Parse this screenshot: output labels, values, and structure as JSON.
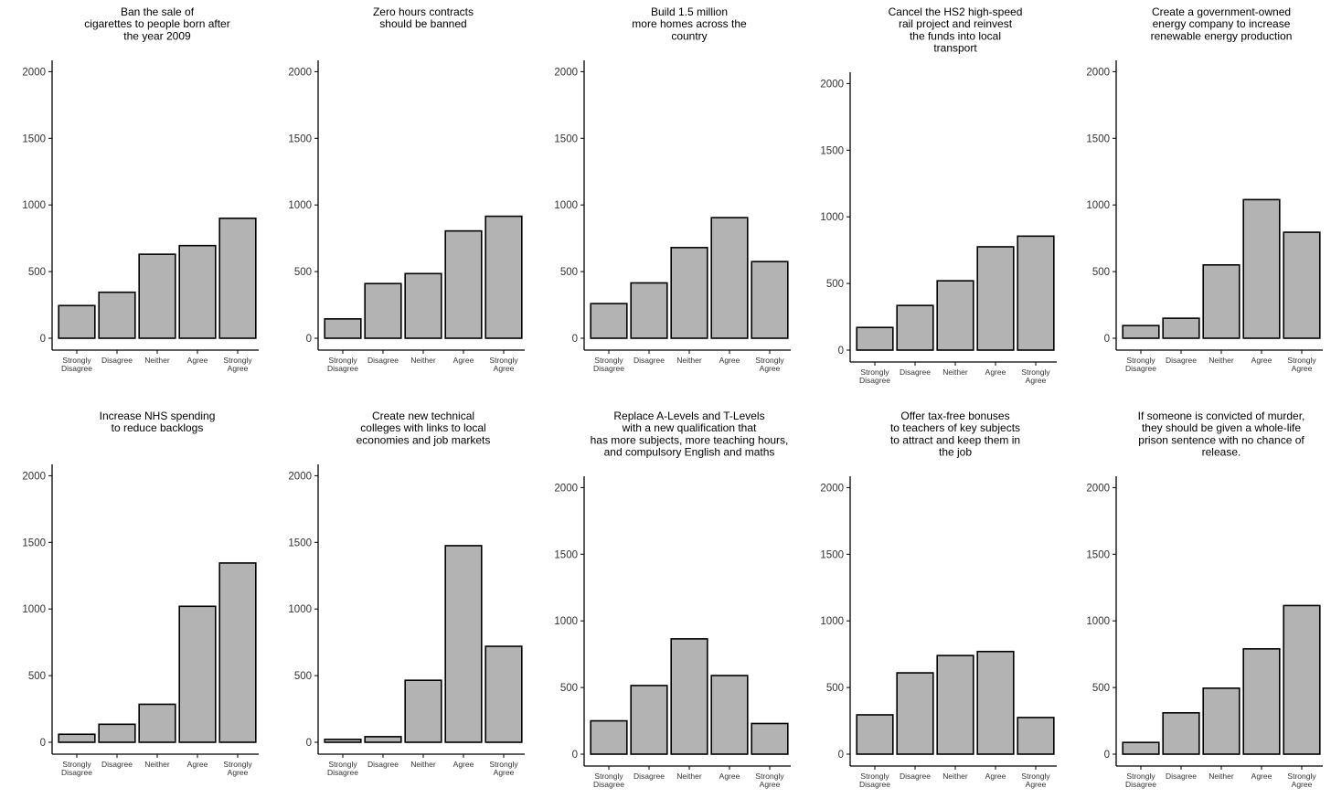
{
  "colors": {
    "bar_fill": "#b3b3b3",
    "bar_stroke": "#000000",
    "axis": "#000000",
    "background": "#ffffff"
  },
  "chart_data": [
    {
      "type": "bar",
      "title": "Ban the sale of cigarettes to people born after the year 2009",
      "title_lines": [
        "Ban the sale of",
        "cigarettes to people born after",
        "the year 2009"
      ],
      "categories": [
        "Strongly Disagree",
        "Disagree",
        "Neither",
        "Agree",
        "Strongly Agree"
      ],
      "category_lines": [
        [
          "Strongly",
          "Disagree"
        ],
        [
          "Disagree"
        ],
        [
          "Neither"
        ],
        [
          "Agree"
        ],
        [
          "Strongly",
          "Agree"
        ]
      ],
      "values": [
        245,
        345,
        630,
        695,
        900
      ],
      "yticks": [
        0,
        500,
        1000,
        1500,
        2000
      ],
      "ylim": [
        0,
        2000
      ],
      "xlabel": "",
      "ylabel": "",
      "grid": false
    },
    {
      "type": "bar",
      "title": "Zero hours contracts should be banned",
      "title_lines": [
        "Zero hours contracts",
        "should be banned"
      ],
      "categories": [
        "Strongly Disagree",
        "Disagree",
        "Neither",
        "Agree",
        "Strongly Agree"
      ],
      "category_lines": [
        [
          "Strongly",
          "Disagree"
        ],
        [
          "Disagree"
        ],
        [
          "Neither"
        ],
        [
          "Agree"
        ],
        [
          "Strongly",
          "Agree"
        ]
      ],
      "values": [
        145,
        410,
        485,
        805,
        915
      ],
      "yticks": [
        0,
        500,
        1000,
        1500,
        2000
      ],
      "ylim": [
        0,
        2000
      ],
      "xlabel": "",
      "ylabel": "",
      "grid": false
    },
    {
      "type": "bar",
      "title": "Build 1.5 million more homes across the country",
      "title_lines": [
        "Build 1.5 million",
        "more homes across the",
        "country"
      ],
      "categories": [
        "Strongly Disagree",
        "Disagree",
        "Neither",
        "Agree",
        "Strongly Agree"
      ],
      "category_lines": [
        [
          "Strongly",
          "Disagree"
        ],
        [
          "Disagree"
        ],
        [
          "Neither"
        ],
        [
          "Agree"
        ],
        [
          "Strongly",
          "Agree"
        ]
      ],
      "values": [
        260,
        415,
        680,
        905,
        575
      ],
      "yticks": [
        0,
        500,
        1000,
        1500,
        2000
      ],
      "ylim": [
        0,
        2000
      ],
      "xlabel": "",
      "ylabel": "",
      "grid": false
    },
    {
      "type": "bar",
      "title": "Cancel the HS2 high-speed rail project and reinvest the funds into local transport",
      "title_lines": [
        "Cancel the HS2 high-speed",
        "rail project and reinvest",
        "the funds into local",
        "transport"
      ],
      "categories": [
        "Strongly Disagree",
        "Disagree",
        "Neither",
        "Agree",
        "Strongly Agree"
      ],
      "category_lines": [
        [
          "Strongly",
          "Disagree"
        ],
        [
          "Disagree"
        ],
        [
          "Neither"
        ],
        [
          "Agree"
        ],
        [
          "Strongly",
          "Agree"
        ]
      ],
      "values": [
        170,
        335,
        520,
        775,
        855
      ],
      "yticks": [
        0,
        500,
        1000,
        1500,
        2000
      ],
      "ylim": [
        0,
        2000
      ],
      "xlabel": "",
      "ylabel": "",
      "grid": false
    },
    {
      "type": "bar",
      "title": "Create a government-owned energy company to increase renewable energy production",
      "title_lines": [
        "Create a government-owned",
        "energy company to increase",
        "renewable energy production"
      ],
      "categories": [
        "Strongly Disagree",
        "Disagree",
        "Neither",
        "Agree",
        "Strongly Agree"
      ],
      "category_lines": [
        [
          "Strongly",
          "Disagree"
        ],
        [
          "Disagree"
        ],
        [
          "Neither"
        ],
        [
          "Agree"
        ],
        [
          "Strongly",
          "Agree"
        ]
      ],
      "values": [
        95,
        150,
        550,
        1040,
        795
      ],
      "yticks": [
        0,
        500,
        1000,
        1500,
        2000
      ],
      "ylim": [
        0,
        2000
      ],
      "xlabel": "",
      "ylabel": "",
      "grid": false
    },
    {
      "type": "bar",
      "title": "Increase NHS spending to reduce backlogs",
      "title_lines": [
        "Increase NHS spending",
        "to reduce backlogs"
      ],
      "categories": [
        "Strongly Disagree",
        "Disagree",
        "Neither",
        "Agree",
        "Strongly Agree"
      ],
      "category_lines": [
        [
          "Strongly",
          "Disagree"
        ],
        [
          "Disagree"
        ],
        [
          "Neither"
        ],
        [
          "Agree"
        ],
        [
          "Strongly",
          "Agree"
        ]
      ],
      "values": [
        60,
        135,
        285,
        1020,
        1345
      ],
      "yticks": [
        0,
        500,
        1000,
        1500,
        2000
      ],
      "ylim": [
        0,
        2000
      ],
      "xlabel": "",
      "ylabel": "",
      "grid": false
    },
    {
      "type": "bar",
      "title": "Create new technical colleges with links to local economies and job markets",
      "title_lines": [
        "Create new technical",
        "colleges with links to local",
        "economies and job markets"
      ],
      "categories": [
        "Strongly Disagree",
        "Disagree",
        "Neither",
        "Agree",
        "Strongly Agree"
      ],
      "category_lines": [
        [
          "Strongly",
          "Disagree"
        ],
        [
          "Disagree"
        ],
        [
          "Neither"
        ],
        [
          "Agree"
        ],
        [
          "Strongly",
          "Agree"
        ]
      ],
      "values": [
        22,
        42,
        465,
        1475,
        720
      ],
      "yticks": [
        0,
        500,
        1000,
        1500,
        2000
      ],
      "ylim": [
        0,
        2000
      ],
      "xlabel": "",
      "ylabel": "",
      "grid": false
    },
    {
      "type": "bar",
      "title": "Replace A-Levels and T-Levels with a new qualification that has more subjects, more teaching hours, and compulsory English and maths",
      "title_lines": [
        "Replace A-Levels and T-Levels",
        "with a new qualification that",
        "has more subjects, more teaching hours,",
        "and compulsory English and maths"
      ],
      "categories": [
        "Strongly Disagree",
        "Disagree",
        "Neither",
        "Agree",
        "Strongly Agree"
      ],
      "category_lines": [
        [
          "Strongly",
          "Disagree"
        ],
        [
          "Disagree"
        ],
        [
          "Neither"
        ],
        [
          "Agree"
        ],
        [
          "Strongly",
          "Agree"
        ]
      ],
      "values": [
        250,
        515,
        865,
        590,
        230
      ],
      "yticks": [
        0,
        500,
        1000,
        1500,
        2000
      ],
      "ylim": [
        0,
        2000
      ],
      "xlabel": "",
      "ylabel": "",
      "grid": false
    },
    {
      "type": "bar",
      "title": "Offer tax-free bonuses to teachers of key subjects to attract and keep them in the job",
      "title_lines": [
        "Offer tax-free bonuses",
        "to teachers of key subjects",
        "to attract and keep them in",
        "the job"
      ],
      "categories": [
        "Strongly Disagree",
        "Disagree",
        "Neither",
        "Agree",
        "Strongly Agree"
      ],
      "category_lines": [
        [
          "Strongly",
          "Disagree"
        ],
        [
          "Disagree"
        ],
        [
          "Neither"
        ],
        [
          "Agree"
        ],
        [
          "Strongly",
          "Agree"
        ]
      ],
      "values": [
        295,
        610,
        740,
        770,
        275
      ],
      "yticks": [
        0,
        500,
        1000,
        1500,
        2000
      ],
      "ylim": [
        0,
        2000
      ],
      "xlabel": "",
      "ylabel": "",
      "grid": false
    },
    {
      "type": "bar",
      "title": "If someone is convicted of murder, they should be given a whole-life prison sentence with no chance of release.",
      "title_lines": [
        "If someone is convicted of murder,",
        "they should be given a whole-life",
        "prison sentence with no chance of",
        "release."
      ],
      "categories": [
        "Strongly Disagree",
        "Disagree",
        "Neither",
        "Agree",
        "Strongly Agree"
      ],
      "category_lines": [
        [
          "Strongly",
          "Disagree"
        ],
        [
          "Disagree"
        ],
        [
          "Neither"
        ],
        [
          "Agree"
        ],
        [
          "Strongly",
          "Agree"
        ]
      ],
      "values": [
        88,
        310,
        495,
        790,
        1115
      ],
      "yticks": [
        0,
        500,
        1000,
        1500,
        2000
      ],
      "ylim": [
        0,
        2000
      ],
      "xlabel": "",
      "ylabel": "",
      "grid": false
    }
  ]
}
